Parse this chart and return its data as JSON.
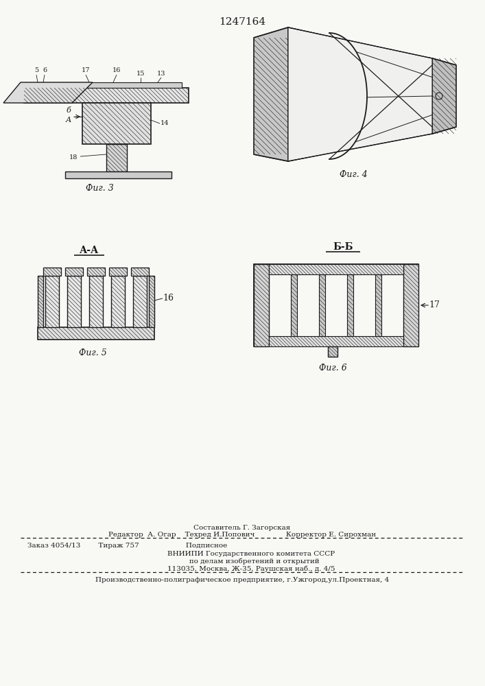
{
  "title": "1247164",
  "bg_color": "#f8f8f5",
  "line_color": "#1a1a1a",
  "fig3_label": "Фиг. 3",
  "fig4_label": "Фиг. 4",
  "fig5_label": "Фиг. 5",
  "fig6_label": "Фиг. 6",
  "label_AA": "А-А",
  "label_BB": "Б-Б",
  "num16": "16",
  "num17": "17",
  "footer1": "Составитель Г. Загорская",
  "footer2": "Редактор  А. Огар    Техред И.Попович              Корректор Е. Сирохман",
  "footer3": "Заказ 4054/13        Тираж 757                     Подписное",
  "footer4": "        ВНИИПИ Государственного комитета СССР",
  "footer5": "           по делам изобретений и открытий",
  "footer6": "        113035, Москва, Ж-35, Раушская наб., д. 4/5",
  "footer7": "Производственно-полиграфическое предприятие, г.Ужгород,ул.Проектная, 4"
}
